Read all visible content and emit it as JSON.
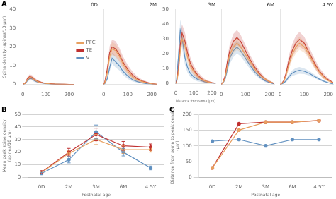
{
  "chart_data": [
    {
      "type": "line",
      "title": "0D",
      "annotations": [
        "A"
      ],
      "ylabel": "Spine density (spines/10 μm)",
      "legend": "right",
      "grid": false,
      "x": [
        0,
        10,
        20,
        30,
        40,
        50,
        60,
        70,
        80,
        90,
        100,
        120,
        140,
        160,
        180,
        200,
        220
      ],
      "xlim": [
        0,
        220
      ],
      "xticks": [
        0,
        100,
        200
      ],
      "ylim": [
        0,
        40
      ],
      "yticks": [
        0,
        10,
        20,
        30,
        40
      ],
      "series": [
        {
          "name": "PFC",
          "color": "#E8A060",
          "values": [
            0,
            0.5,
            2.5,
            3.8,
            3.5,
            2.5,
            1.8,
            1.2,
            0.9,
            0.7,
            0.5,
            0.3,
            0.2,
            0.1,
            0.1,
            0.0,
            0.0
          ],
          "sd": [
            0,
            0.3,
            0.8,
            1.0,
            1.0,
            0.8,
            0.6,
            0.5,
            0.4,
            0.3,
            0.2,
            0.1,
            0.1,
            0.1,
            0.0,
            0.0,
            0.0
          ]
        },
        {
          "name": "TE",
          "color": "#C03030",
          "values": [
            0,
            0.6,
            3.0,
            4.2,
            3.8,
            2.8,
            2.0,
            1.5,
            1.1,
            0.8,
            0.6,
            0.4,
            0.2,
            0.1,
            0.1,
            0.0,
            0.0
          ],
          "sd": [
            0,
            0.4,
            1.0,
            1.2,
            1.1,
            0.9,
            0.7,
            0.5,
            0.4,
            0.3,
            0.2,
            0.1,
            0.1,
            0.1,
            0.0,
            0.0,
            0.0
          ]
        },
        {
          "name": "V1",
          "color": "#6090C0",
          "values": [
            0,
            0.4,
            2.0,
            3.2,
            3.0,
            2.0,
            1.5,
            1.0,
            0.8,
            0.6,
            0.4,
            0.2,
            0.1,
            0.1,
            0.0,
            0.0,
            0.0
          ],
          "sd": [
            0,
            0.2,
            0.7,
            0.9,
            0.9,
            0.7,
            0.5,
            0.4,
            0.3,
            0.2,
            0.2,
            0.1,
            0.1,
            0.0,
            0.0,
            0.0,
            0.0
          ]
        }
      ]
    },
    {
      "type": "line",
      "title": "2M",
      "grid": false,
      "tick_labels": "x",
      "x": [
        0,
        5,
        15,
        25,
        35,
        50,
        65,
        80,
        100,
        120,
        140,
        160,
        180,
        200,
        220
      ],
      "xlim": [
        0,
        220
      ],
      "xticks": [
        0,
        100,
        200
      ],
      "ylim": [
        0,
        40
      ],
      "yticks": [
        0,
        10,
        20,
        30,
        40
      ],
      "series": [
        {
          "name": "PFC",
          "color": "#E8A060",
          "values": [
            0,
            1,
            6,
            15,
            19,
            18,
            15,
            11,
            7,
            4,
            2.5,
            1.5,
            0.8,
            0.3,
            0.1
          ],
          "sd": [
            0,
            0.5,
            2,
            3,
            3.5,
            3.5,
            3,
            2.5,
            2,
            1.5,
            1,
            0.7,
            0.4,
            0.2,
            0.1
          ]
        },
        {
          "name": "TE",
          "color": "#C03030",
          "values": [
            0,
            1.5,
            8,
            17,
            20,
            19,
            16,
            12,
            8,
            5,
            3,
            1.8,
            1,
            0.4,
            0.1
          ],
          "sd": [
            0,
            0.7,
            2.5,
            3.5,
            4,
            4,
            3.5,
            3,
            2.3,
            1.8,
            1.2,
            0.8,
            0.5,
            0.2,
            0.1
          ]
        },
        {
          "name": "V1",
          "color": "#6090C0",
          "values": [
            0,
            0.5,
            3,
            9,
            14,
            12,
            10,
            7,
            4.5,
            2.5,
            1.5,
            0.8,
            0.4,
            0.2,
            0.0
          ],
          "sd": [
            0,
            0.3,
            1,
            2,
            3,
            3,
            2.5,
            2,
            1.5,
            1,
            0.6,
            0.4,
            0.2,
            0.1,
            0.0
          ]
        }
      ]
    },
    {
      "type": "line",
      "title": "3M",
      "xlabel": "Distance from soma (μm)",
      "grid": false,
      "x": [
        0,
        5,
        15,
        25,
        35,
        50,
        65,
        80,
        100,
        120,
        140,
        160,
        180,
        200,
        220
      ],
      "xlim": [
        0,
        220
      ],
      "xticks": [
        0,
        100,
        200
      ],
      "ylim": [
        0,
        50
      ],
      "yticks": [
        0,
        10,
        20,
        30,
        40,
        50
      ],
      "series": [
        {
          "name": "PFC",
          "color": "#E8A060",
          "values": [
            0,
            1,
            8,
            22,
            30,
            26,
            18,
            12,
            8,
            5,
            3,
            1.8,
            1,
            0.5,
            0.2
          ],
          "sd": [
            0,
            0.5,
            3,
            5,
            5,
            5,
            4,
            3,
            2.5,
            2,
            1.5,
            1,
            0.7,
            0.4,
            0.2
          ]
        },
        {
          "name": "TE",
          "color": "#C03030",
          "values": [
            0,
            1.5,
            10,
            26,
            34,
            29,
            21,
            14,
            9,
            6,
            3.5,
            2,
            1.2,
            0.6,
            0.2
          ],
          "sd": [
            0,
            0.7,
            3.5,
            6,
            6,
            6,
            5,
            4,
            3,
            2.3,
            1.8,
            1.2,
            0.8,
            0.4,
            0.2
          ]
        },
        {
          "name": "V1",
          "color": "#6090C0",
          "values": [
            0,
            3,
            18,
            36,
            31,
            18,
            11,
            7,
            4.5,
            3,
            2,
            1.2,
            0.7,
            0.3,
            0.1
          ],
          "sd": [
            0,
            1.5,
            5,
            7,
            7,
            5,
            3.5,
            2.5,
            2,
            1.5,
            1,
            0.6,
            0.4,
            0.2,
            0.1
          ]
        }
      ]
    },
    {
      "type": "line",
      "title": "6M",
      "grid": false,
      "tick_labels": "x",
      "x": [
        0,
        5,
        15,
        25,
        35,
        50,
        65,
        80,
        100,
        120,
        140,
        160,
        180,
        200,
        220
      ],
      "xlim": [
        0,
        220
      ],
      "xticks": [
        0,
        100,
        200
      ],
      "ylim": [
        0,
        40
      ],
      "yticks": [
        0,
        10,
        20,
        30,
        40
      ],
      "series": [
        {
          "name": "PFC",
          "color": "#E8A060",
          "values": [
            0,
            0.5,
            3,
            10,
            16,
            20,
            22,
            20,
            16,
            12,
            8,
            5,
            3,
            1.5,
            0.5
          ],
          "sd": [
            0,
            0.3,
            1,
            2,
            3,
            3.5,
            3.5,
            3,
            2.5,
            2,
            1.5,
            1,
            0.7,
            0.5,
            0.3
          ]
        },
        {
          "name": "TE",
          "color": "#C03030",
          "values": [
            0,
            0.8,
            4,
            12,
            18,
            23,
            25,
            23,
            18,
            13,
            9,
            5.5,
            3,
            1.5,
            0.5
          ],
          "sd": [
            0,
            0.4,
            1.5,
            2.5,
            3.5,
            4,
            4,
            3.5,
            3,
            2.5,
            2,
            1.5,
            1,
            0.6,
            0.3
          ]
        },
        {
          "name": "V1",
          "color": "#6090C0",
          "values": [
            0,
            0.5,
            2.5,
            8,
            14,
            18,
            20,
            18,
            14,
            10,
            6.5,
            4,
            2,
            1,
            0.3
          ],
          "sd": [
            0,
            0.3,
            1,
            2,
            3,
            3.5,
            3.5,
            3,
            2.5,
            2,
            1.5,
            1,
            0.7,
            0.4,
            0.2
          ]
        }
      ]
    },
    {
      "type": "line",
      "title": "4.5Y",
      "grid": false,
      "tick_labels": "x",
      "x": [
        0,
        5,
        15,
        25,
        35,
        50,
        65,
        80,
        100,
        120,
        140,
        160,
        180,
        200,
        220
      ],
      "xlim": [
        0,
        220
      ],
      "xticks": [
        0,
        100,
        200
      ],
      "ylim": [
        0,
        40
      ],
      "yticks": [
        0,
        10,
        20,
        30,
        40
      ],
      "series": [
        {
          "name": "PFC",
          "color": "#E8A060",
          "values": [
            0,
            0.3,
            1.5,
            5,
            10,
            16,
            20,
            22,
            20,
            16,
            11,
            7,
            4,
            2,
            0.8
          ],
          "sd": [
            0,
            0.2,
            0.7,
            1.5,
            2.5,
            3,
            3.5,
            3.5,
            3,
            2.5,
            2,
            1.5,
            1,
            0.6,
            0.3
          ]
        },
        {
          "name": "TE",
          "color": "#C03030",
          "values": [
            0,
            0.3,
            2,
            6,
            12,
            18,
            22,
            24,
            22,
            17,
            12,
            7.5,
            4.5,
            2.5,
            1
          ],
          "sd": [
            0,
            0.2,
            0.8,
            2,
            3,
            3.5,
            4,
            4,
            3.5,
            3,
            2.5,
            2,
            1.5,
            0.8,
            0.4
          ]
        },
        {
          "name": "V1",
          "color": "#6090C0",
          "values": [
            0,
            0.2,
            0.8,
            2,
            4,
            6,
            7,
            7.5,
            7,
            6,
            4.5,
            3,
            1.8,
            0.9,
            0.3
          ],
          "sd": [
            0,
            0.1,
            0.4,
            0.8,
            1.2,
            1.5,
            1.8,
            1.8,
            1.5,
            1.3,
            1,
            0.7,
            0.5,
            0.3,
            0.1
          ]
        }
      ]
    },
    {
      "type": "line",
      "annotations": [
        "B"
      ],
      "xlabel": "Postnatal age",
      "ylabel": "Mean peak spine density\n(spines/10 μm)",
      "grid": true,
      "categories": [
        "0D",
        "2M",
        "3M",
        "6M",
        "4.5Y"
      ],
      "ylim": [
        0,
        50
      ],
      "yticks": [
        0,
        10,
        20,
        30,
        40,
        50
      ],
      "series": [
        {
          "name": "PFC",
          "color": "#E8A060",
          "marker": "circle",
          "values": [
            3.8,
            19,
            30,
            22,
            22
          ],
          "sd": [
            0.8,
            2.5,
            4,
            3,
            2
          ]
        },
        {
          "name": "TE",
          "color": "#C03030",
          "marker": "circle",
          "values": [
            4.2,
            20,
            34,
            25,
            24
          ],
          "sd": [
            1.0,
            3,
            5,
            3.5,
            2.5
          ]
        },
        {
          "name": "V1",
          "color": "#6090C0",
          "marker": "circle",
          "values": [
            3.2,
            14,
            36,
            20,
            7.5
          ],
          "sd": [
            0.8,
            2.5,
            5.5,
            3,
            1.5
          ]
        }
      ]
    },
    {
      "type": "line",
      "annotations": [
        "C"
      ],
      "xlabel": "Postnatal age",
      "ylabel": "Distance from soma to peak density\n(μm)",
      "grid": true,
      "categories": [
        "0D",
        "2M",
        "3M",
        "6M",
        "4.5Y"
      ],
      "ylim": [
        0,
        200
      ],
      "yticks": [
        0,
        50,
        100,
        150,
        200
      ],
      "series": [
        {
          "name": "PFC",
          "color": "#E8A060",
          "marker": "circle",
          "values": [
            30,
            150,
            175,
            175,
            180
          ]
        },
        {
          "name": "TE",
          "color": "#C03030",
          "marker": "circle",
          "values": [
            30,
            170,
            175,
            175,
            180
          ]
        },
        {
          "name": "V1",
          "color": "#6090C0",
          "marker": "circle",
          "values": [
            115,
            120,
            100,
            120,
            120
          ]
        }
      ]
    }
  ]
}
